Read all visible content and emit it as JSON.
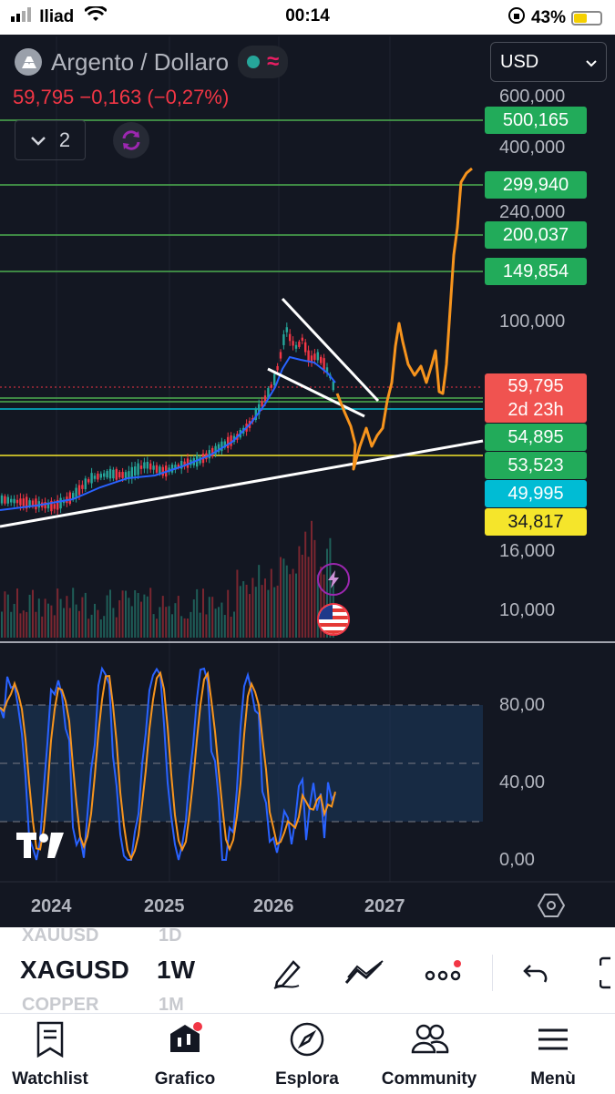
{
  "status_bar": {
    "carrier": "Iliad",
    "time": "00:14",
    "battery": "43%"
  },
  "header": {
    "title": "Argento / Dollaro",
    "price_line": "59,795  −0,163 (−0,27%)",
    "indicator_count": "2",
    "currency": "USD"
  },
  "colors": {
    "background": "#131722",
    "up": "#26a69a",
    "down": "#f23645",
    "drawing": "#f7941d",
    "green_line": "#4caf50",
    "yellow_line": "#f5e52b",
    "cyan_line": "#00bcd4"
  },
  "price_axis": [
    "600,000",
    "400,000",
    "240,000",
    "100,000",
    "16,000",
    "10,000"
  ],
  "price_tags": [
    {
      "label": "500,165",
      "color": "#22ab5a"
    },
    {
      "label": "299,940",
      "color": "#22ab5a"
    },
    {
      "label": "200,037",
      "color": "#22ab5a"
    },
    {
      "label": "149,854",
      "color": "#22ab5a"
    },
    {
      "label": "54,895",
      "color": "#22ab5a"
    },
    {
      "label": "53,523",
      "color": "#22ab5a"
    },
    {
      "label": "49,995",
      "color": "#00bcd4"
    },
    {
      "label": "34,817",
      "color": "#f5e52b"
    }
  ],
  "last_price_tag": {
    "price": "59,795",
    "countdown": "2d 23h"
  },
  "oscillator_axis": [
    "80,00",
    "40,00",
    "0,00"
  ],
  "date_axis": [
    "2024",
    "2025",
    "2026",
    "2027"
  ],
  "toolbar": {
    "symbol_prev": "XAUUSD",
    "symbol": "XAGUSD",
    "symbol_next": "COPPER",
    "tf_prev": "1D",
    "timeframe": "1W",
    "tf_next": "1M"
  },
  "tabs": [
    {
      "label": "Watchlist",
      "icon": "watchlist-icon"
    },
    {
      "label": "Grafico",
      "icon": "chart-icon"
    },
    {
      "label": "Esplora",
      "icon": "compass-icon"
    },
    {
      "label": "Community",
      "icon": "community-icon"
    },
    {
      "label": "Menù",
      "icon": "menu-icon"
    }
  ]
}
